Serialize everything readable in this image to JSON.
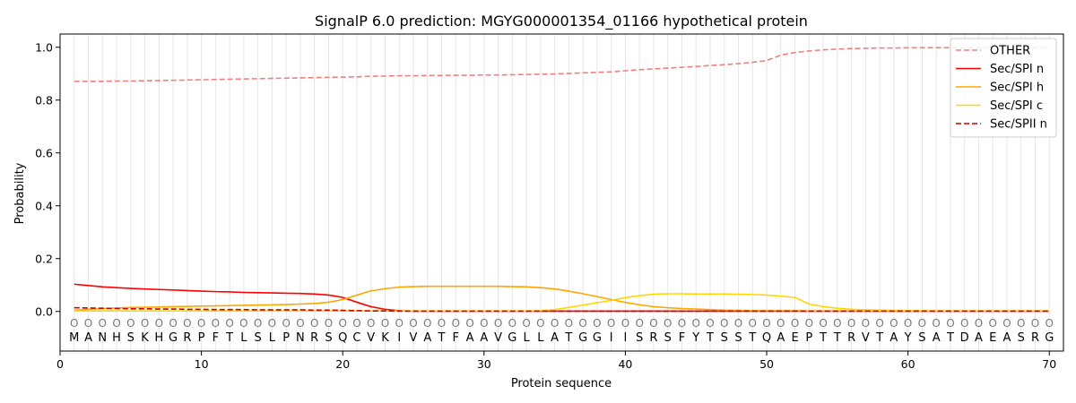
{
  "chart_data": {
    "type": "line",
    "title": "SignalP 6.0 prediction: MGYG000001354_01166 hypothetical protein",
    "xlabel": "Protein sequence",
    "ylabel": "Probability",
    "xlim": [
      0,
      71
    ],
    "ylim": [
      -0.15,
      1.05
    ],
    "x_ticks": [
      0,
      10,
      20,
      30,
      40,
      50,
      60,
      70
    ],
    "y_ticks": [
      0.0,
      0.2,
      0.4,
      0.6,
      0.8,
      1.0
    ],
    "x_tick_labels": [
      "0",
      "10",
      "20",
      "30",
      "40",
      "50",
      "60",
      "70"
    ],
    "y_tick_labels": [
      "0.0",
      "0.2",
      "0.4",
      "0.6",
      "0.8",
      "1.0"
    ],
    "grid": "vertical lines at each residue",
    "legend_position": "top-right",
    "sequence": [
      "M",
      "A",
      "N",
      "H",
      "S",
      "K",
      "H",
      "G",
      "R",
      "P",
      "F",
      "T",
      "L",
      "S",
      "L",
      "P",
      "N",
      "R",
      "S",
      "Q",
      "C",
      "V",
      "K",
      "I",
      "V",
      "A",
      "T",
      "F",
      "A",
      "A",
      "V",
      "G",
      "L",
      "L",
      "A",
      "T",
      "G",
      "G",
      "I",
      "I",
      "S",
      "R",
      "S",
      "F",
      "Y",
      "T",
      "S",
      "S",
      "T",
      "Q",
      "A",
      "E",
      "P",
      "T",
      "T",
      "R",
      "V",
      "T",
      "A",
      "Y",
      "S",
      "A",
      "T",
      "D",
      "A",
      "E",
      "A",
      "S",
      "R",
      "G"
    ],
    "residue_marker": "O",
    "series": [
      {
        "name": "OTHER",
        "color": "#f08080",
        "dash": "dashed",
        "values": [
          0.871,
          0.871,
          0.871,
          0.872,
          0.872,
          0.873,
          0.874,
          0.875,
          0.876,
          0.877,
          0.878,
          0.879,
          0.88,
          0.881,
          0.882,
          0.883,
          0.884,
          0.885,
          0.886,
          0.887,
          0.888,
          0.89,
          0.891,
          0.892,
          0.892,
          0.893,
          0.893,
          0.894,
          0.894,
          0.895,
          0.895,
          0.896,
          0.897,
          0.898,
          0.899,
          0.901,
          0.903,
          0.905,
          0.907,
          0.911,
          0.915,
          0.918,
          0.921,
          0.924,
          0.927,
          0.931,
          0.934,
          0.938,
          0.943,
          0.95,
          0.97,
          0.98,
          0.986,
          0.99,
          0.993,
          0.995,
          0.996,
          0.997,
          0.997,
          0.998,
          0.998,
          0.998,
          0.998,
          0.998,
          0.998,
          0.998,
          0.998,
          0.998,
          0.998,
          0.998
        ]
      },
      {
        "name": "Sec/SPI n",
        "color": "#ff0000",
        "dash": "solid",
        "values": [
          0.103,
          0.098,
          0.093,
          0.09,
          0.087,
          0.085,
          0.083,
          0.081,
          0.079,
          0.077,
          0.075,
          0.074,
          0.072,
          0.071,
          0.07,
          0.069,
          0.068,
          0.066,
          0.062,
          0.053,
          0.035,
          0.018,
          0.008,
          0.003,
          0.001,
          0.001,
          0.001,
          0.001,
          0.001,
          0.001,
          0.001,
          0.001,
          0.001,
          0.001,
          0.001,
          0.001,
          0.001,
          0.001,
          0.001,
          0.001,
          0.001,
          0.001,
          0.001,
          0.001,
          0.001,
          0.001,
          0.001,
          0.001,
          0.001,
          0.001,
          0.001,
          0.001,
          0.001,
          0.001,
          0.001,
          0.001,
          0.001,
          0.001,
          0.001,
          0.001,
          0.001,
          0.001,
          0.001,
          0.001,
          0.001,
          0.001,
          0.001,
          0.001,
          0.001,
          0.001
        ]
      },
      {
        "name": "Sec/SPI h",
        "color": "#ffa500",
        "dash": "solid",
        "values": [
          0.005,
          0.008,
          0.011,
          0.013,
          0.015,
          0.016,
          0.017,
          0.018,
          0.019,
          0.02,
          0.021,
          0.022,
          0.023,
          0.024,
          0.025,
          0.026,
          0.028,
          0.03,
          0.035,
          0.045,
          0.062,
          0.078,
          0.086,
          0.092,
          0.094,
          0.095,
          0.095,
          0.095,
          0.095,
          0.095,
          0.095,
          0.094,
          0.093,
          0.09,
          0.085,
          0.077,
          0.067,
          0.056,
          0.045,
          0.034,
          0.025,
          0.018,
          0.014,
          0.011,
          0.009,
          0.007,
          0.005,
          0.004,
          0.003,
          0.003,
          0.003,
          0.003,
          0.002,
          0.002,
          0.002,
          0.002,
          0.002,
          0.002,
          0.002,
          0.002,
          0.002,
          0.002,
          0.002,
          0.002,
          0.002,
          0.002,
          0.002,
          0.002,
          0.002,
          0.002
        ]
      },
      {
        "name": "Sec/SPI c",
        "color": "#ffd700",
        "dash": "solid",
        "values": [
          0.002,
          0.002,
          0.002,
          0.002,
          0.002,
          0.002,
          0.002,
          0.002,
          0.002,
          0.002,
          0.002,
          0.002,
          0.002,
          0.002,
          0.002,
          0.002,
          0.002,
          0.002,
          0.002,
          0.002,
          0.002,
          0.002,
          0.002,
          0.002,
          0.002,
          0.002,
          0.002,
          0.002,
          0.002,
          0.002,
          0.002,
          0.002,
          0.002,
          0.003,
          0.007,
          0.015,
          0.024,
          0.033,
          0.042,
          0.052,
          0.06,
          0.065,
          0.067,
          0.067,
          0.066,
          0.066,
          0.066,
          0.065,
          0.064,
          0.062,
          0.058,
          0.053,
          0.028,
          0.018,
          0.012,
          0.008,
          0.006,
          0.005,
          0.004,
          0.003,
          0.003,
          0.002,
          0.002,
          0.002,
          0.002,
          0.002,
          0.002,
          0.002,
          0.002,
          0.002
        ]
      },
      {
        "name": "Sec/SPII n",
        "color": "#cc0000",
        "dash": "dashed",
        "values": [
          0.014,
          0.013,
          0.012,
          0.011,
          0.01,
          0.01,
          0.009,
          0.009,
          0.008,
          0.008,
          0.007,
          0.007,
          0.007,
          0.006,
          0.006,
          0.006,
          0.006,
          0.005,
          0.005,
          0.004,
          0.003,
          0.002,
          0.002,
          0.001,
          0.001,
          0.001,
          0.001,
          0.001,
          0.001,
          0.001,
          0.001,
          0.001,
          0.001,
          0.001,
          0.001,
          0.001,
          0.001,
          0.001,
          0.001,
          0.001,
          0.001,
          0.001,
          0.001,
          0.001,
          0.001,
          0.001,
          0.001,
          0.001,
          0.001,
          0.001,
          0.001,
          0.001,
          0.001,
          0.001,
          0.001,
          0.001,
          0.001,
          0.001,
          0.001,
          0.001,
          0.001,
          0.001,
          0.001,
          0.001,
          0.001,
          0.001,
          0.001,
          0.001,
          0.001,
          0.001
        ]
      }
    ]
  }
}
